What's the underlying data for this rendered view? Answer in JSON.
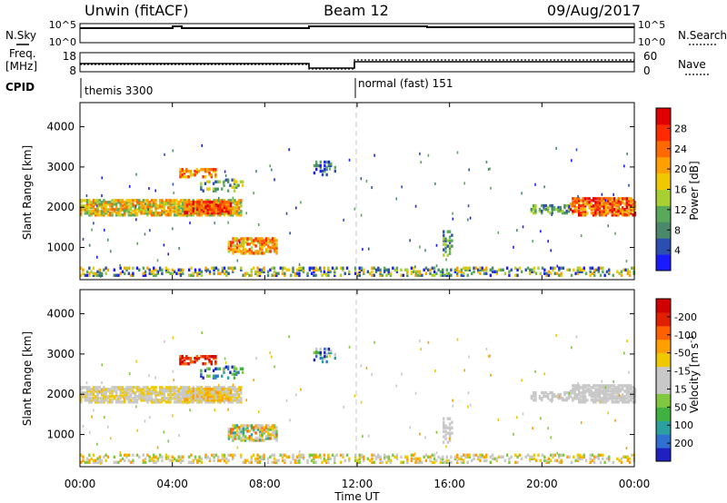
{
  "header": {
    "station": "Unwin (fitACF)",
    "beam": "Beam 12",
    "date": "09/Aug/2017"
  },
  "sky_panel": {
    "left_label": "N.Sky",
    "right_label": "N.Search",
    "left_ticks": [
      "10^5",
      "10^0"
    ],
    "right_ticks": [
      "10^5",
      "10^0"
    ]
  },
  "freq_panel": {
    "left_label_1": "Freq.",
    "left_label_2": "[MHz]",
    "right_label": "Nave",
    "left_ticks": [
      "18",
      "8"
    ],
    "right_ticks": [
      "60",
      "0"
    ]
  },
  "cpid": {
    "label": "CPID",
    "modes": [
      {
        "start_hour": 0,
        "text": "themis 3300"
      },
      {
        "start_hour": 12,
        "text": "normal (fast) 151"
      }
    ]
  },
  "chart_data": [
    {
      "type": "heatmap",
      "name": "power",
      "ylabel": "Slant Range [km]",
      "yticks": [
        1000,
        2000,
        3000,
        4000
      ],
      "ylim": [
        200,
        4600
      ],
      "colorbar": {
        "label": "Power [dB]",
        "ticks": [
          "4",
          "8",
          "12",
          "16",
          "20",
          "24",
          "28"
        ],
        "colors": [
          "#1a1aff",
          "#2a4fb0",
          "#4a8a6a",
          "#5aa85a",
          "#a8d030",
          "#f0c800",
          "#ffa000",
          "#ff6a00",
          "#ff2a00",
          "#e00000"
        ]
      }
    },
    {
      "type": "heatmap",
      "name": "velocity",
      "ylabel": "Slant Range [km]",
      "yticks": [
        1000,
        2000,
        3000,
        4000
      ],
      "ylim": [
        200,
        4600
      ],
      "colorbar": {
        "label": "Velocity [m s",
        "label_sup": "-1",
        "ticks": [
          "200",
          "100",
          "50",
          "15",
          "-15",
          "-50",
          "-100",
          "-200"
        ],
        "colors": [
          "#2020c0",
          "#3070d0",
          "#2aa0a0",
          "#40b040",
          "#80c840",
          "#c8c8c8",
          "#c8c8c8",
          "#f0c800",
          "#ffa000",
          "#ff6000",
          "#e02000",
          "#d00000"
        ]
      }
    }
  ],
  "time_axis": {
    "label": "Time UT",
    "ticks": [
      "00:00",
      "04:00",
      "08:00",
      "12:00",
      "16:00",
      "20:00",
      "00:00"
    ]
  }
}
